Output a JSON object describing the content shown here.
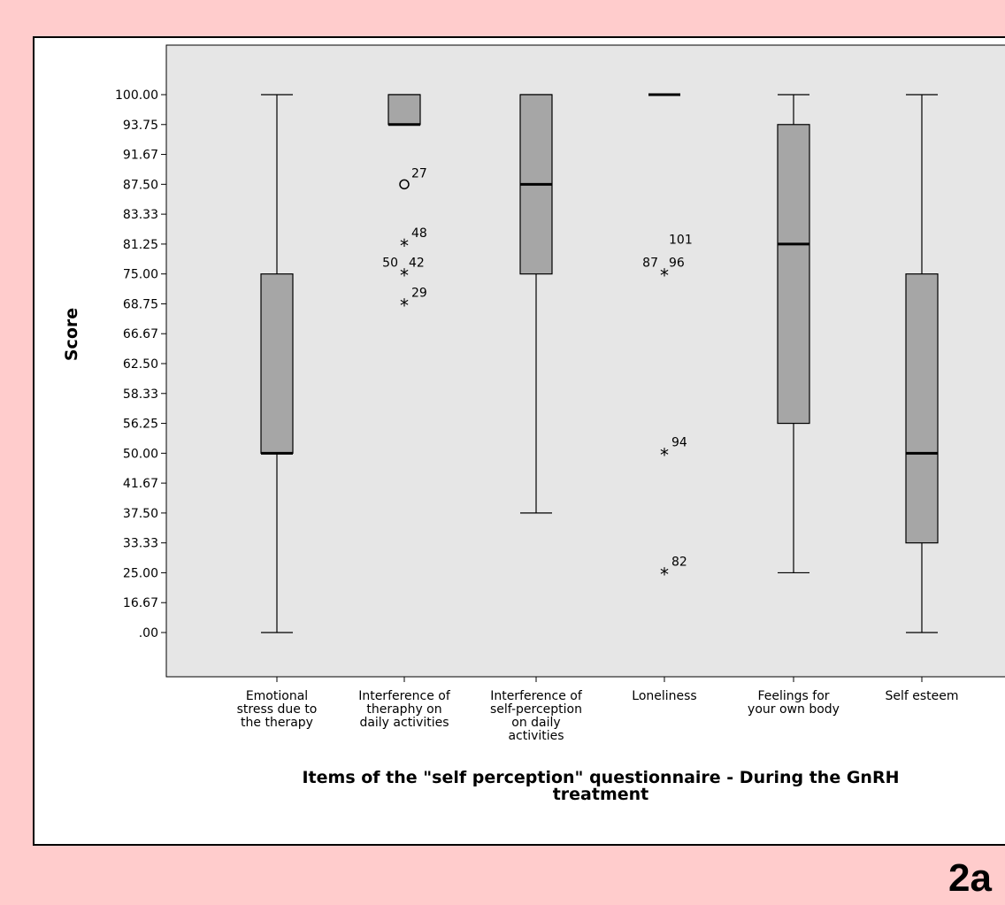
{
  "chart_data": {
    "type": "boxplot",
    "ylabel": "Score",
    "xlabel": "Items of the \"self perception\" questionnaire - During the GnRH",
    "xlabel_line2": "treatment",
    "yticks": [
      {
        "value": 100.0,
        "label": "100.00"
      },
      {
        "value": 93.75,
        "label": "93.75"
      },
      {
        "value": 91.67,
        "label": "91.67"
      },
      {
        "value": 87.5,
        "label": "87.50"
      },
      {
        "value": 83.33,
        "label": "83.33"
      },
      {
        "value": 81.25,
        "label": "81.25"
      },
      {
        "value": 75.0,
        "label": "75.00"
      },
      {
        "value": 68.75,
        "label": "68.75"
      },
      {
        "value": 66.67,
        "label": "66.67"
      },
      {
        "value": 62.5,
        "label": "62.50"
      },
      {
        "value": 58.33,
        "label": "58.33"
      },
      {
        "value": 56.25,
        "label": "56.25"
      },
      {
        "value": 50.0,
        "label": "50.00"
      },
      {
        "value": 41.67,
        "label": "41.67"
      },
      {
        "value": 37.5,
        "label": "37.50"
      },
      {
        "value": 33.33,
        "label": "33.33"
      },
      {
        "value": 25.0,
        "label": "25.00"
      },
      {
        "value": 16.67,
        "label": "16.67"
      },
      {
        "value": 0.0,
        "label": ".00"
      }
    ],
    "categories": [
      {
        "label_lines": [
          "Emotional",
          "stress due to",
          "the therapy"
        ],
        "whisker_low": 0.0,
        "q1": 50.0,
        "median": 50.0,
        "q3": 75.0,
        "whisker_high": 100.0,
        "outliers": []
      },
      {
        "label_lines": [
          "Interference of",
          "theraphy on",
          "daily activities"
        ],
        "whisker_low": 93.75,
        "q1": 93.75,
        "median": 93.75,
        "q3": 100.0,
        "whisker_high": 100.0,
        "outliers": [
          {
            "value": 87.5,
            "marker": "circle",
            "labels": [
              "27"
            ]
          },
          {
            "value": 81.25,
            "marker": "star",
            "labels": [
              "48"
            ]
          },
          {
            "value": 75.0,
            "marker": "star",
            "labels": [
              "50",
              "42"
            ]
          },
          {
            "value": 68.75,
            "marker": "star",
            "labels": [
              "29"
            ]
          }
        ]
      },
      {
        "label_lines": [
          "Interference of",
          "self-perception",
          "on daily",
          "activities"
        ],
        "whisker_low": 37.5,
        "q1": 75.0,
        "median": 87.5,
        "q3": 100.0,
        "whisker_high": 100.0,
        "outliers": []
      },
      {
        "label_lines": [
          "Loneliness"
        ],
        "whisker_low": 100.0,
        "q1": 100.0,
        "median": 100.0,
        "q3": 100.0,
        "whisker_high": 100.0,
        "outliers": [
          {
            "value": 75.0,
            "marker": "star",
            "labels": [
              "87",
              "96",
              "101"
            ]
          },
          {
            "value": 50.0,
            "marker": "star",
            "labels": [
              "94"
            ]
          },
          {
            "value": 25.0,
            "marker": "star",
            "labels": [
              "82"
            ]
          }
        ]
      },
      {
        "label_lines": [
          "Feelings for",
          "your own body"
        ],
        "whisker_low": 25.0,
        "q1": 56.25,
        "median": 81.25,
        "q3": 93.75,
        "whisker_high": 100.0,
        "outliers": []
      },
      {
        "label_lines": [
          "Self esteem"
        ],
        "whisker_low": 0.0,
        "q1": 33.33,
        "median": 50.0,
        "q3": 75.0,
        "whisker_high": 100.0,
        "outliers": []
      }
    ],
    "colors": {
      "page_background": "#ffcccc",
      "plot_background": "#e6e6e6",
      "box_fill": "#a6a6a6",
      "line": "#000000"
    }
  },
  "panel_label": "2a"
}
